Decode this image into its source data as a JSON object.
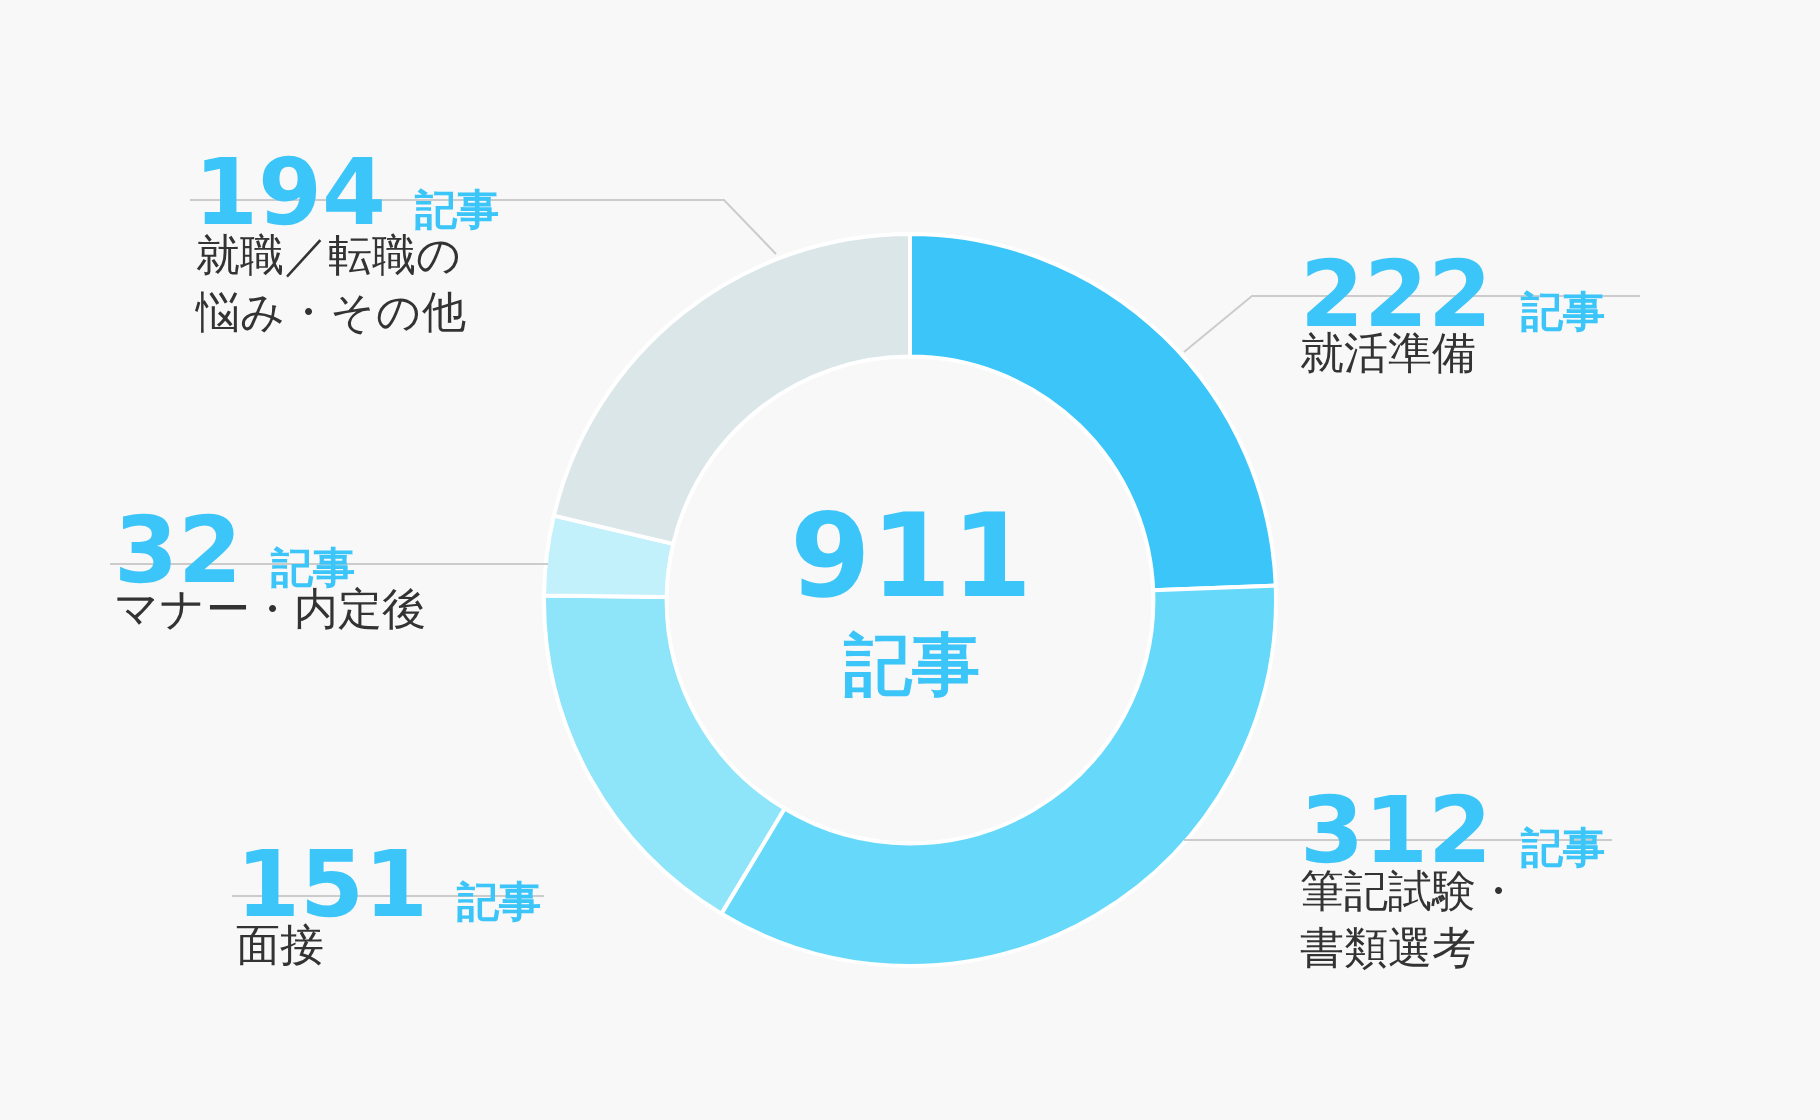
{
  "chart_data": {
    "type": "donut",
    "categories": [
      "就活準備",
      "筆記試験・書類選考",
      "面接",
      "マナー・内定後",
      "就職／転職の悩み・その他"
    ],
    "values": [
      222,
      312,
      151,
      32,
      194
    ],
    "colors": [
      "#3cc5f8",
      "#66d9fb",
      "#8ee4f8",
      "#c2f1fb",
      "#dbe6e9"
    ],
    "value_labels": [
      "222 記事",
      "312 記事",
      "151 記事",
      "32 記事",
      "194 記事"
    ],
    "annotations": [
      "911",
      "記事"
    ],
    "legend": false
  }
}
